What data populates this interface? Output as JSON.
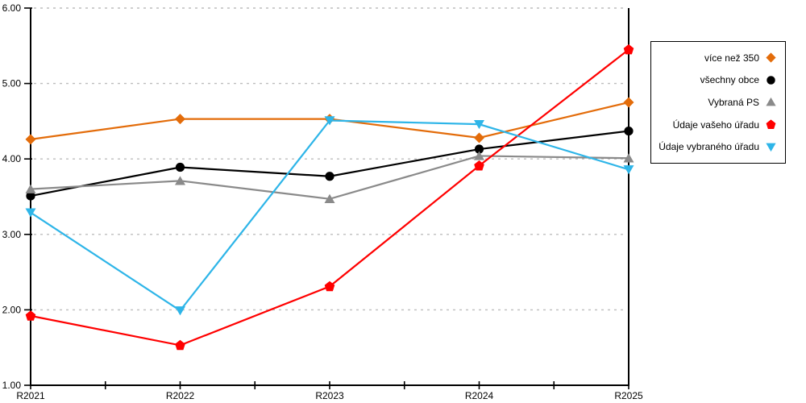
{
  "chart_data": {
    "type": "line",
    "title": "",
    "xlabel": "",
    "ylabel": "",
    "categories": [
      "R2021",
      "R2022",
      "R2023",
      "R2024",
      "R2025"
    ],
    "series": [
      {
        "name": "více než 350",
        "color": "#e36c0a",
        "marker": "diamond",
        "values": [
          4.26,
          4.53,
          4.53,
          4.28,
          4.75
        ]
      },
      {
        "name": "všechny obce",
        "color": "#000000",
        "marker": "circle",
        "values": [
          3.51,
          3.89,
          3.77,
          4.13,
          4.37
        ]
      },
      {
        "name": "Vybraná PS",
        "color": "#8a8a8a",
        "marker": "triangle-up",
        "values": [
          3.6,
          3.71,
          3.47,
          4.04,
          4.01
        ]
      },
      {
        "name": "Údaje vašeho úřadu",
        "color": "#ff0000",
        "marker": "pentagon",
        "values": [
          1.92,
          1.53,
          2.31,
          3.91,
          5.45
        ]
      },
      {
        "name": "Údaje vybraného úřadu",
        "color": "#2eb5e8",
        "marker": "triangle-down",
        "values": [
          3.29,
          1.99,
          4.51,
          4.46,
          3.86
        ]
      }
    ],
    "ylim": [
      1,
      6
    ],
    "y_tick_labels": [
      "1.00",
      "2.00",
      "3.00",
      "4.00",
      "5.00",
      "6.00"
    ],
    "grid": "horizontal-dashed",
    "legend_position": "right-box"
  },
  "colors": {
    "background": "#ffffff",
    "axis": "#000000",
    "gridline": "#bdbdbd",
    "legend_border": "#000000"
  }
}
